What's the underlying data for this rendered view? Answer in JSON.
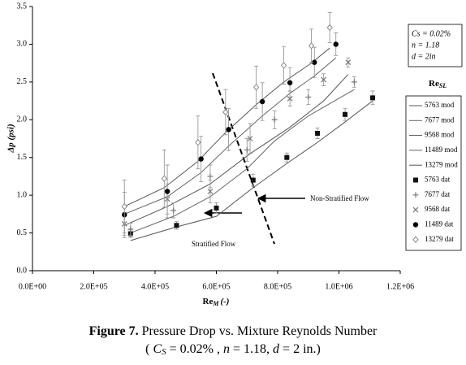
{
  "chart_data": {
    "type": "line",
    "y_label": "Δp (psi)",
    "x_label": {
      "main": "Re",
      "sub": "M",
      "rest": "(-)"
    },
    "xlim": [
      0,
      1200000
    ],
    "ylim": [
      0,
      3.5
    ],
    "xticks": [
      {
        "value": 0,
        "label": "0.0E+00"
      },
      {
        "value": 200000,
        "label": "2.0E+05"
      },
      {
        "value": 400000,
        "label": "4.0E+05"
      },
      {
        "value": 600000,
        "label": "6.0E+05"
      },
      {
        "value": 800000,
        "label": "8.0E+05"
      },
      {
        "value": 1000000,
        "label": "1.0E+06"
      },
      {
        "value": 1200000,
        "label": "1.2E+06"
      }
    ],
    "yticks": [
      {
        "value": 0,
        "label": "0.0"
      },
      0.5,
      {
        "value": 1,
        "label": "1.0"
      },
      1.5,
      {
        "value": 2,
        "label": "2.0"
      },
      2.5,
      {
        "value": 3,
        "label": "3.0"
      },
      3.5
    ],
    "grid": false,
    "legend_title": {
      "main": "Re",
      "sub": "SL"
    },
    "info_box": [
      "Cs = 0.02%",
      "n = 1.18",
      "d = 2in"
    ],
    "annotations": [
      "Non-Stratified Flow",
      "Stratified Flow"
    ],
    "caption": {
      "label": "Figure 7.",
      "text": "Pressure Drop vs. Mixture Reynolds Number",
      "line2": [
        "(",
        "C",
        "S",
        "= 0.02% ,",
        "n",
        "= 1.18,",
        "d",
        "= 2 in.)"
      ]
    },
    "series": [
      {
        "name": "5763 mod",
        "type": "line",
        "color": "#555555",
        "x": [
          320000,
          470000,
          600000,
          720000,
          830000,
          930000,
          1020000,
          1110000
        ],
        "values": [
          0.4,
          0.58,
          0.72,
          1.1,
          1.42,
          1.7,
          1.97,
          2.25
        ]
      },
      {
        "name": "7677 mod",
        "type": "line",
        "color": "#666666",
        "x": [
          320000,
          460000,
          580000,
          700000,
          790000,
          900000,
          1050000
        ],
        "values": [
          0.5,
          0.72,
          0.98,
          1.35,
          1.72,
          2.05,
          2.4
        ]
      },
      {
        "name": "9568 mod",
        "type": "line",
        "color": "#555555",
        "x": [
          300000,
          440000,
          580000,
          710000,
          840000,
          950000,
          1030000
        ],
        "values": [
          0.6,
          0.85,
          1.15,
          1.55,
          1.9,
          2.25,
          2.6
        ]
      },
      {
        "name": "11489 mod",
        "type": "line",
        "color": "#666666",
        "x": [
          300000,
          440000,
          550000,
          640000,
          750000,
          840000,
          920000,
          990000
        ],
        "values": [
          0.75,
          0.98,
          1.3,
          1.65,
          2.05,
          2.35,
          2.58,
          2.82
        ]
      },
      {
        "name": "13279 mod",
        "type": "line",
        "color": "#555555",
        "x": [
          300000,
          430000,
          540000,
          630000,
          730000,
          820000,
          910000,
          970000
        ],
        "values": [
          0.85,
          1.1,
          1.45,
          1.83,
          2.2,
          2.5,
          2.75,
          2.95
        ]
      },
      {
        "name": "5763 dat",
        "type": "scatter",
        "marker": "square",
        "color": "#111111",
        "x": [
          320000,
          470000,
          600000,
          720000,
          830000,
          930000,
          1020000,
          1110000
        ],
        "values": [
          0.49,
          0.6,
          0.83,
          1.2,
          1.5,
          1.82,
          2.07,
          2.29
        ],
        "errors": [
          0.05,
          0.05,
          0.07,
          0.08,
          0.06,
          0.07,
          0.08,
          0.09
        ]
      },
      {
        "name": "7677 dat",
        "type": "scatter",
        "marker": "plus",
        "color": "#777777",
        "x": [
          320000,
          460000,
          580000,
          700000,
          790000,
          900000,
          1050000
        ],
        "values": [
          0.55,
          0.8,
          1.25,
          1.6,
          2.0,
          2.3,
          2.5
        ],
        "errors": [
          0.08,
          0.1,
          0.15,
          0.15,
          0.12,
          0.1,
          0.07
        ]
      },
      {
        "name": "9568 dat",
        "type": "scatter",
        "marker": "x",
        "color": "#777777",
        "x": [
          300000,
          440000,
          580000,
          710000,
          840000,
          950000,
          1030000
        ],
        "values": [
          0.62,
          0.95,
          1.05,
          1.75,
          2.28,
          2.53,
          2.76
        ],
        "errors": [
          0.15,
          0.2,
          0.15,
          0.2,
          0.1,
          0.08,
          0.06
        ]
      },
      {
        "name": "11489 dat",
        "type": "scatter",
        "marker": "circle",
        "color": "#000000",
        "x": [
          300000,
          440000,
          550000,
          640000,
          750000,
          840000,
          920000,
          990000
        ],
        "values": [
          0.74,
          1.05,
          1.48,
          1.87,
          2.24,
          2.49,
          2.76,
          3.0
        ],
        "errors": [
          0.3,
          0.35,
          0.3,
          0.28,
          0.25,
          0.2,
          0.2,
          0.15
        ]
      },
      {
        "name": "13279 dat",
        "type": "scatter",
        "marker": "diamond",
        "color": "#888888",
        "x": [
          300000,
          430000,
          540000,
          630000,
          730000,
          820000,
          910000,
          970000
        ],
        "values": [
          0.85,
          1.22,
          1.7,
          2.1,
          2.43,
          2.72,
          2.98,
          3.22
        ],
        "errors": [
          0.35,
          0.38,
          0.35,
          0.3,
          0.28,
          0.25,
          0.22,
          0.2
        ]
      }
    ]
  }
}
